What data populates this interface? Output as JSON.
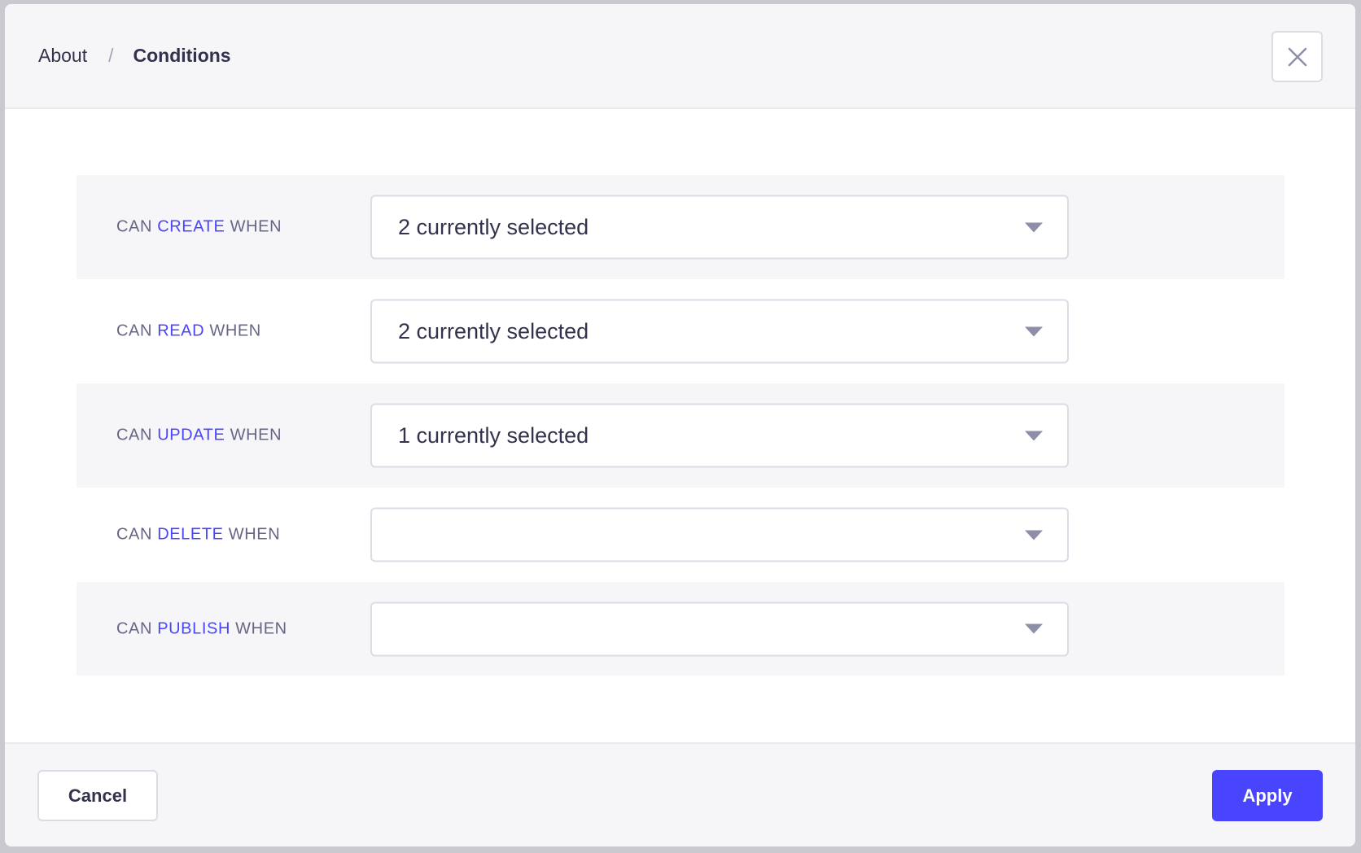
{
  "breadcrumb": {
    "parent": "About",
    "separator": "/",
    "current": "Conditions"
  },
  "close_icon": "close-icon",
  "conditions": [
    {
      "prefix": "CAN",
      "action": "CREATE",
      "suffix": "WHEN",
      "value": "2 currently selected"
    },
    {
      "prefix": "CAN",
      "action": "READ",
      "suffix": "WHEN",
      "value": "2 currently selected"
    },
    {
      "prefix": "CAN",
      "action": "UPDATE",
      "suffix": "WHEN",
      "value": "1 currently selected"
    },
    {
      "prefix": "CAN",
      "action": "DELETE",
      "suffix": "WHEN",
      "value": ""
    },
    {
      "prefix": "CAN",
      "action": "PUBLISH",
      "suffix": "WHEN",
      "value": ""
    }
  ],
  "footer": {
    "cancel_label": "Cancel",
    "apply_label": "Apply"
  },
  "colors": {
    "accent": "#4945ff",
    "label": "#666687",
    "text": "#32324d"
  }
}
